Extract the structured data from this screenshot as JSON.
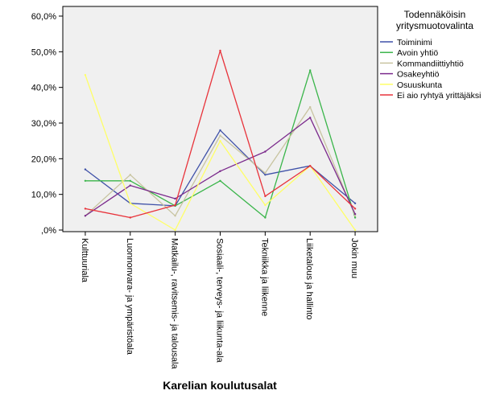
{
  "chart_data": {
    "type": "line",
    "title": "",
    "xlabel": "Karelian koulutusalat",
    "ylabel": "",
    "ylim": [
      0,
      0.6
    ],
    "y_ticks": [
      0,
      0.1,
      0.2,
      0.3,
      0.4,
      0.5,
      0.6
    ],
    "y_tick_labels": [
      ",0%",
      "10,0%",
      "20,0%",
      "30,0%",
      "40,0%",
      "50,0%",
      "60,0%"
    ],
    "grid": false,
    "background": "#f0f0f0",
    "categories": [
      "Kulttuuriala",
      "Luonnonvara- ja ympäristöala",
      "Matkailu-, ravitsemis- ja talousala",
      "Sosiaali-, terveys- ja liikunta-ala",
      "Tekniikka ja liikenne",
      "Liiketalous ja hallinto",
      "Jokin muu"
    ],
    "legend": {
      "title": "Todennäköisin yritysmuotovalinta",
      "position": "right"
    },
    "series": [
      {
        "name": "Toiminimi",
        "color": "#3f51a8",
        "values": [
          0.17,
          0.075,
          0.068,
          0.28,
          0.155,
          0.18,
          0.075
        ]
      },
      {
        "name": "Avoin yhtiö",
        "color": "#3ab54a",
        "values": [
          0.138,
          0.138,
          0.068,
          0.138,
          0.035,
          0.448,
          0.035
        ]
      },
      {
        "name": "Kommandiittiyhtiö",
        "color": "#c8c4a0",
        "values": [
          0.04,
          0.155,
          0.04,
          0.265,
          0.16,
          0.345,
          0.04
        ]
      },
      {
        "name": "Osakeyhtiö",
        "color": "#7b2a8c",
        "values": [
          0.04,
          0.125,
          0.088,
          0.165,
          0.22,
          0.315,
          0.045
        ]
      },
      {
        "name": "Osuuskunta",
        "color": "#ffff66",
        "values": [
          0.435,
          0.075,
          0.0,
          0.25,
          0.07,
          0.18,
          0.0
        ]
      },
      {
        "name": "Ei aio ryhtyä yrittäjäksi",
        "color": "#e8323a",
        "values": [
          0.06,
          0.035,
          0.07,
          0.503,
          0.095,
          0.18,
          0.06
        ]
      }
    ]
  }
}
